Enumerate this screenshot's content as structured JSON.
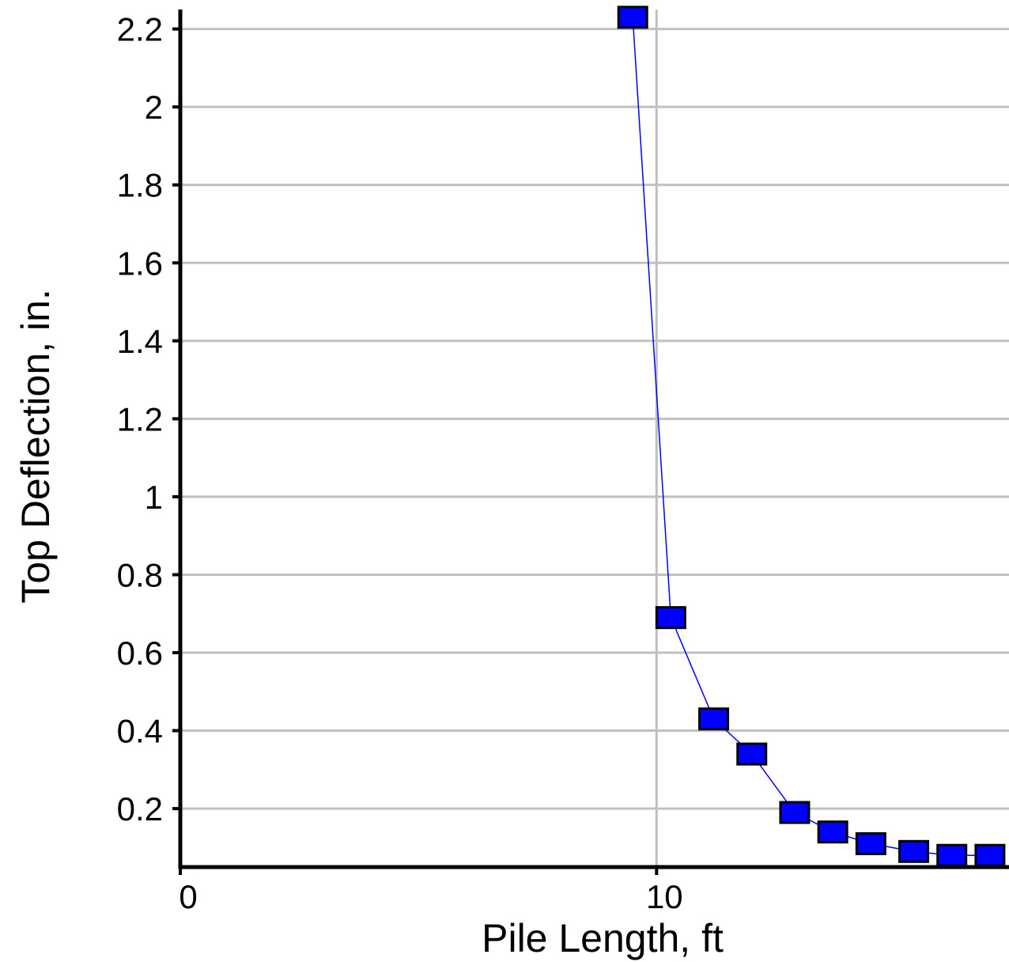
{
  "chart_data": {
    "type": "scatter",
    "title": "",
    "xlabel": "Pile Length, ft",
    "ylabel": "Top Deflection, in.",
    "xlim": [
      0,
      17.4
    ],
    "ylim": [
      0.05,
      2.25
    ],
    "x_ticks": [
      0,
      10
    ],
    "y_ticks": [
      0.2,
      0.4,
      0.6,
      0.8,
      1,
      1.2,
      1.4,
      1.6,
      1.8,
      2,
      2.2
    ],
    "grid": true,
    "legend": "none",
    "colors": {
      "marker_fill": "#0000ff",
      "marker_edge": "#000000",
      "line": "#0000ff",
      "grid": "#c0c0c0",
      "axis": "#000000"
    },
    "series": [
      {
        "x": [
          9.5,
          10.3,
          11.2,
          12.0,
          12.9,
          13.7,
          14.5,
          15.4,
          16.2,
          17.0
        ],
        "y": [
          2.23,
          0.69,
          0.43,
          0.34,
          0.19,
          0.14,
          0.11,
          0.09,
          0.08,
          0.08
        ]
      }
    ]
  }
}
